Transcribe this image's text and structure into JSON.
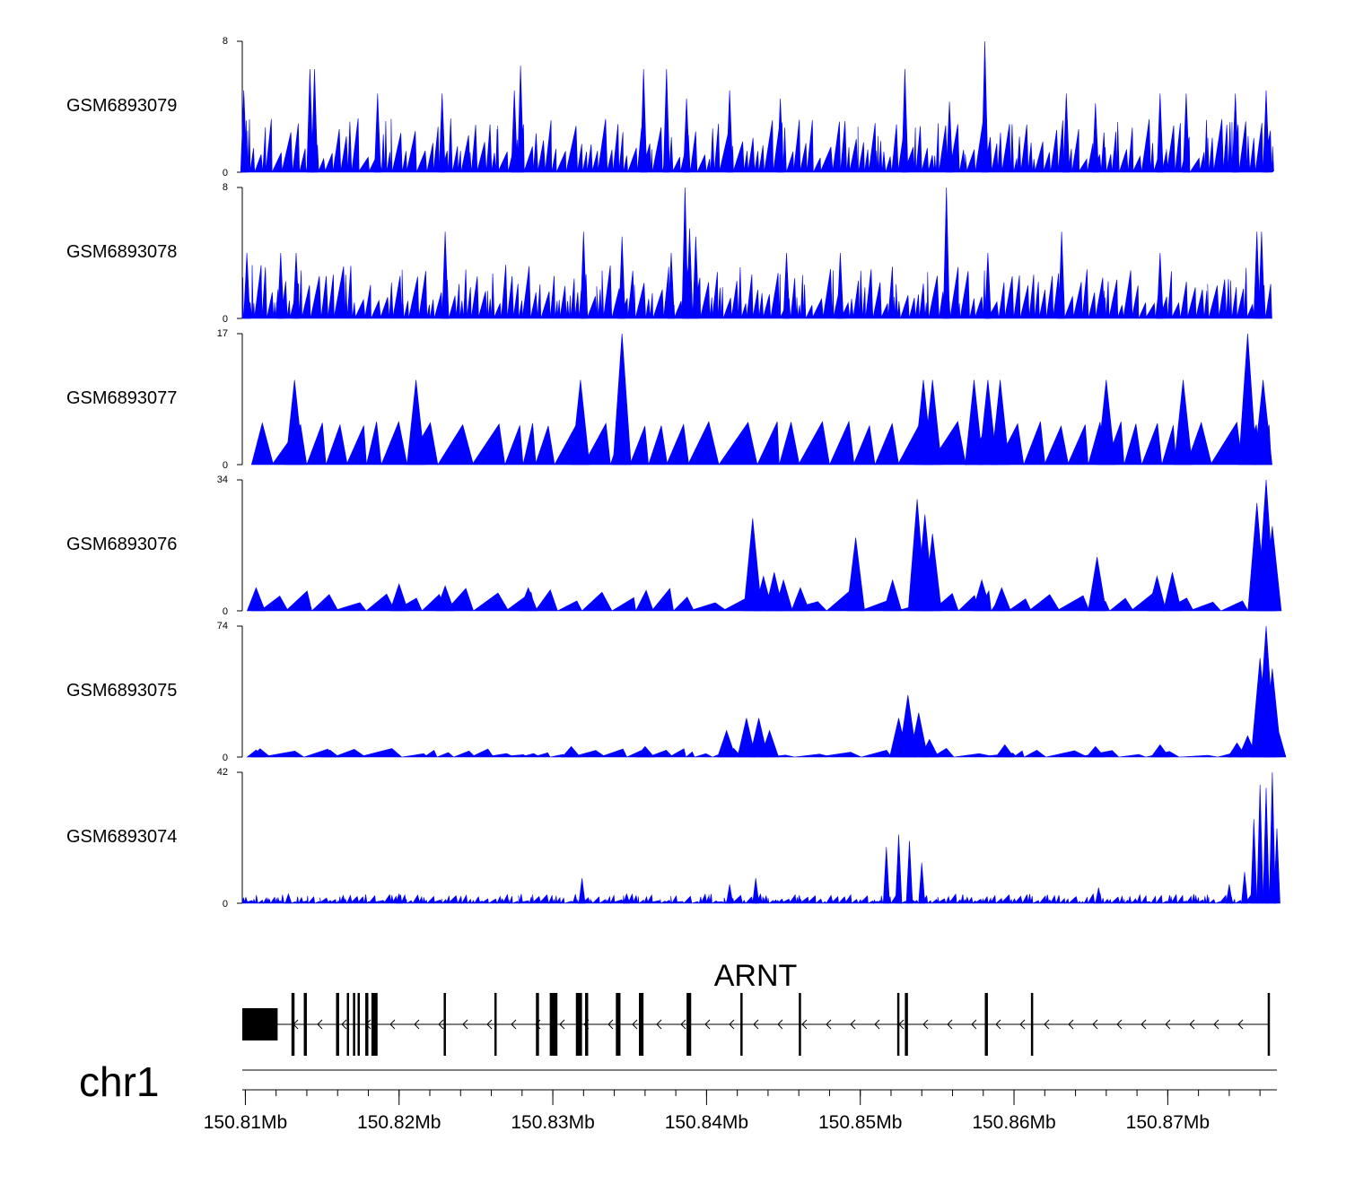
{
  "chart_data": {
    "type": "area",
    "title": "",
    "chromosome": "chr1",
    "region": {
      "start": 150.8098,
      "end": 150.8771,
      "unit": "Mb"
    },
    "colors": {
      "signal": "#0000ff",
      "axis": "#000000",
      "gene": "#000000"
    },
    "x_ticks": [
      {
        "value": 150.81,
        "label": "150.81Mb"
      },
      {
        "value": 150.82,
        "label": "150.82Mb"
      },
      {
        "value": 150.83,
        "label": "150.83Mb"
      },
      {
        "value": 150.84,
        "label": "150.84Mb"
      },
      {
        "value": 150.85,
        "label": "150.85Mb"
      },
      {
        "value": 150.86,
        "label": "150.86Mb"
      },
      {
        "value": 150.87,
        "label": "150.87Mb"
      }
    ],
    "tracks": [
      {
        "name": "GSM6893079",
        "ymax": 8,
        "ymin_label": "0",
        "ymax_label": "8",
        "peaks": [
          [
            150.8099,
            5
          ],
          [
            150.8142,
            6.3
          ],
          [
            150.8145,
            6.3
          ],
          [
            150.8186,
            4.8
          ],
          [
            150.8228,
            4.8
          ],
          [
            150.8275,
            5
          ],
          [
            150.8279,
            6.5
          ],
          [
            150.8359,
            6.3
          ],
          [
            150.8374,
            6.3
          ],
          [
            150.8387,
            4.5
          ],
          [
            150.8415,
            5
          ],
          [
            150.8448,
            4.5
          ],
          [
            150.8529,
            6.3
          ],
          [
            150.8558,
            4.3
          ],
          [
            150.8581,
            8
          ],
          [
            150.8634,
            4.8
          ],
          [
            150.8653,
            4.2
          ],
          [
            150.8695,
            4.8
          ],
          [
            150.8712,
            4.8
          ],
          [
            150.8744,
            4.8
          ],
          [
            150.8764,
            5
          ]
        ],
        "noise": [
          0.8,
          3.3
        ],
        "density": 0.6,
        "start": 150.8098,
        "end": 150.8768
      },
      {
        "name": "GSM6893078",
        "ymax": 8,
        "ymin_label": "0",
        "ymax_label": "8",
        "peaks": [
          [
            150.8101,
            4
          ],
          [
            150.8123,
            4
          ],
          [
            150.8133,
            4
          ],
          [
            150.823,
            5.3
          ],
          [
            150.832,
            5.3
          ],
          [
            150.8345,
            5
          ],
          [
            150.8377,
            4
          ],
          [
            150.8386,
            8
          ],
          [
            150.8389,
            5.5
          ],
          [
            150.8393,
            5
          ],
          [
            150.8452,
            4
          ],
          [
            150.8487,
            4
          ],
          [
            150.8556,
            8
          ],
          [
            150.8583,
            4
          ],
          [
            150.8631,
            5.3
          ],
          [
            150.8695,
            4
          ],
          [
            150.8758,
            5.3
          ],
          [
            150.8761,
            5.3
          ]
        ],
        "noise": [
          0.8,
          3.3
        ],
        "density": 0.62,
        "start": 150.8098,
        "end": 150.8768
      },
      {
        "name": "GSM6893077",
        "ymax": 17,
        "ymin_label": "0",
        "ymax_label": "17",
        "peaks": [
          [
            150.8132,
            11
          ],
          [
            150.8211,
            11
          ],
          [
            150.8318,
            11
          ],
          [
            150.8345,
            17
          ],
          [
            150.8541,
            11
          ],
          [
            150.8547,
            11
          ],
          [
            150.8574,
            11
          ],
          [
            150.8583,
            11
          ],
          [
            150.8591,
            11
          ],
          [
            150.866,
            11
          ],
          [
            150.871,
            11
          ],
          [
            150.8752,
            17
          ],
          [
            150.8762,
            11
          ]
        ],
        "noise": [
          5,
          5.6
        ],
        "density": 0.28,
        "start": 150.8104,
        "end": 150.8767
      },
      {
        "name": "GSM6893076",
        "ymax": 34,
        "ymin_label": "0",
        "ymax_label": "34",
        "peaks": [
          [
            150.8107,
            6
          ],
          [
            150.82,
            7
          ],
          [
            150.823,
            6.5
          ],
          [
            150.8284,
            6
          ],
          [
            150.843,
            24
          ],
          [
            150.8437,
            9
          ],
          [
            150.8444,
            10
          ],
          [
            150.845,
            8
          ],
          [
            150.8461,
            6
          ],
          [
            150.8497,
            19
          ],
          [
            150.8521,
            8
          ],
          [
            150.8537,
            29
          ],
          [
            150.8542,
            25
          ],
          [
            150.8547,
            20
          ],
          [
            150.8579,
            8
          ],
          [
            150.8592,
            6
          ],
          [
            150.8654,
            14
          ],
          [
            150.8693,
            9
          ],
          [
            150.8703,
            10
          ],
          [
            150.8758,
            28
          ],
          [
            150.8764,
            34
          ],
          [
            150.8768,
            22
          ]
        ],
        "noise": [
          2,
          6
        ],
        "density": 0.35,
        "start": 150.8104,
        "end": 150.8771
      },
      {
        "name": "GSM6893075",
        "ymax": 74,
        "ymin_label": "0",
        "ymax_label": "74",
        "peaks": [
          [
            150.8107,
            4
          ],
          [
            150.8155,
            4
          ],
          [
            150.8312,
            6
          ],
          [
            150.836,
            6
          ],
          [
            150.8413,
            15
          ],
          [
            150.8426,
            22
          ],
          [
            150.8434,
            22
          ],
          [
            150.8441,
            15
          ],
          [
            150.8525,
            22
          ],
          [
            150.8531,
            35
          ],
          [
            150.8538,
            25
          ],
          [
            150.8545,
            10
          ],
          [
            150.8594,
            7
          ],
          [
            150.8653,
            6
          ],
          [
            150.8695,
            7
          ],
          [
            150.8745,
            8
          ],
          [
            150.8752,
            12
          ],
          [
            150.876,
            56
          ],
          [
            150.8764,
            74
          ],
          [
            150.8768,
            50
          ],
          [
            150.8771,
            18
          ]
        ],
        "noise": [
          1,
          5
        ],
        "density": 0.35,
        "start": 150.8104,
        "end": 150.8771
      },
      {
        "name": "GSM6893074",
        "ymax": 42,
        "ymin_label": "0",
        "ymax_label": "42",
        "peaks": [
          [
            150.8128,
            3
          ],
          [
            150.82,
            3
          ],
          [
            150.8319,
            8
          ],
          [
            150.8348,
            3
          ],
          [
            150.8415,
            6
          ],
          [
            150.8432,
            8
          ],
          [
            150.8517,
            18
          ],
          [
            150.8525,
            22
          ],
          [
            150.8532,
            20
          ],
          [
            150.854,
            13
          ],
          [
            150.8655,
            5
          ],
          [
            150.874,
            6
          ],
          [
            150.875,
            10
          ],
          [
            150.8756,
            27
          ],
          [
            150.876,
            38
          ],
          [
            150.8764,
            37
          ],
          [
            150.8768,
            42
          ],
          [
            150.8771,
            24
          ]
        ],
        "noise": [
          0.5,
          3
        ],
        "density": 0.8,
        "start": 150.8098,
        "end": 150.8771
      }
    ],
    "gene": {
      "name": "ARNT",
      "strand": "-",
      "start": 150.8098,
      "end": 150.8766,
      "exons": [
        {
          "start": 150.8098,
          "end": 150.8121,
          "type": "utr"
        },
        {
          "start": 150.813,
          "end": 150.8132,
          "type": "cds"
        },
        {
          "start": 150.8138,
          "end": 150.814,
          "type": "cds"
        },
        {
          "start": 150.8159,
          "end": 150.8161,
          "type": "cds"
        },
        {
          "start": 150.8166,
          "end": 150.8167,
          "type": "cds"
        },
        {
          "start": 150.817,
          "end": 150.8171,
          "type": "cds"
        },
        {
          "start": 150.8173,
          "end": 150.8174,
          "type": "cds"
        },
        {
          "start": 150.8178,
          "end": 150.818,
          "type": "cds"
        },
        {
          "start": 150.8182,
          "end": 150.8186,
          "type": "cds"
        },
        {
          "start": 150.8229,
          "end": 150.823,
          "type": "cds"
        },
        {
          "start": 150.8262,
          "end": 150.8263,
          "type": "cds"
        },
        {
          "start": 150.8289,
          "end": 150.8291,
          "type": "cds"
        },
        {
          "start": 150.8298,
          "end": 150.8303,
          "type": "cds"
        },
        {
          "start": 150.8315,
          "end": 150.8319,
          "type": "cds"
        },
        {
          "start": 150.8321,
          "end": 150.8323,
          "type": "cds"
        },
        {
          "start": 150.8341,
          "end": 150.8344,
          "type": "cds"
        },
        {
          "start": 150.8356,
          "end": 150.8359,
          "type": "cds"
        },
        {
          "start": 150.8387,
          "end": 150.839,
          "type": "cds"
        },
        {
          "start": 150.8422,
          "end": 150.8423,
          "type": "cds"
        },
        {
          "start": 150.846,
          "end": 150.8461,
          "type": "cds"
        },
        {
          "start": 150.8524,
          "end": 150.8525,
          "type": "cds"
        },
        {
          "start": 150.8529,
          "end": 150.8531,
          "type": "cds"
        },
        {
          "start": 150.8581,
          "end": 150.8583,
          "type": "cds"
        },
        {
          "start": 150.8611,
          "end": 150.8612,
          "type": "cds"
        },
        {
          "start": 150.8765,
          "end": 150.8766,
          "type": "cds"
        }
      ]
    }
  }
}
